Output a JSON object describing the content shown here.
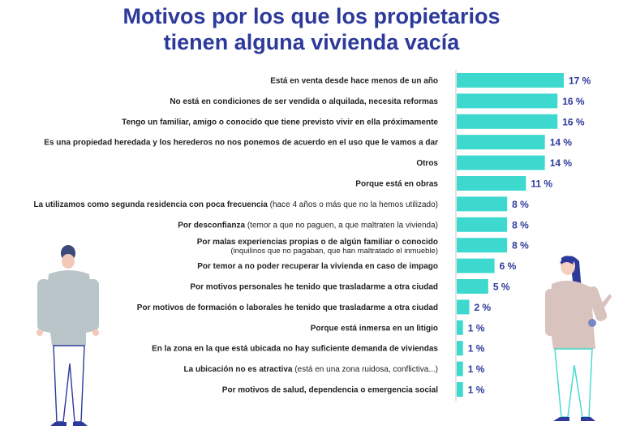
{
  "title_lines": [
    "Motivos por los que los propietarios",
    "tienen alguna vivienda vacía"
  ],
  "colors": {
    "bar": "#3dd9cf",
    "title": "#2d3a9b",
    "value": "#2d3a9b",
    "label": "#222222",
    "axis": "#c8c8c8"
  },
  "chart_data": {
    "type": "bar",
    "orientation": "horizontal",
    "title": "Motivos por los que los propietarios tienen alguna vivienda vacía",
    "unit": "%",
    "xlim": [
      0,
      17
    ],
    "categories": [
      {
        "bold": "Está en venta desde hace menos de un año",
        "light": "",
        "light2": ""
      },
      {
        "bold": "No está en condiciones de ser vendida o alquilada, necesita reformas",
        "light": "",
        "light2": ""
      },
      {
        "bold": "Tengo un familiar, amigo o conocido que tiene previsto vivir en ella próximamente",
        "light": "",
        "light2": ""
      },
      {
        "bold": "Es una propiedad heredada y los herederos no nos ponemos de acuerdo en el uso que le vamos a dar",
        "light": "",
        "light2": ""
      },
      {
        "bold": "Otros",
        "light": "",
        "light2": ""
      },
      {
        "bold": "Porque está en obras",
        "light": "",
        "light2": ""
      },
      {
        "bold": "La utilizamos como segunda residencia con poca frecuencia",
        "light": " (hace 4 años o más que no la hemos utilizado)",
        "light2": ""
      },
      {
        "bold": "Por desconfianza",
        "light": " (temor a que no paguen, a que maltraten la vivienda)",
        "light2": ""
      },
      {
        "bold": "Por malas experiencias propias o de algún familiar o conocido",
        "light": "",
        "light2": "(inquilinos que no pagaban, que han maltratado el inmueble)"
      },
      {
        "bold": "Por temor a no poder recuperar la vivienda en caso de impago",
        "light": "",
        "light2": ""
      },
      {
        "bold": "Por motivos personales he tenido que trasladarme a otra ciudad",
        "light": "",
        "light2": ""
      },
      {
        "bold": "Por motivos de formación o laborales he tenido que trasladarme a otra ciudad",
        "light": "",
        "light2": ""
      },
      {
        "bold": "Porque está inmersa en un litigio",
        "light": "",
        "light2": ""
      },
      {
        "bold": "En la zona en la que está ubicada no hay suficiente demanda de viviendas",
        "light": "",
        "light2": ""
      },
      {
        "bold": "La ubicación no es atractiva",
        "light": " (está en una zona ruidosa, conflictiva...)",
        "light2": ""
      },
      {
        "bold": "Por motivos de salud, dependencia o emergencia social",
        "light": "",
        "light2": ""
      }
    ],
    "values": [
      17,
      16,
      16,
      14,
      14,
      11,
      8,
      8,
      8,
      6,
      5,
      2,
      1,
      1,
      1,
      1
    ],
    "value_labels": [
      "17 %",
      "16 %",
      "16 %",
      "14 %",
      "14 %",
      "11 %",
      "8 %",
      "8 %",
      "8 %",
      "6 %",
      "5 %",
      "2 %",
      "1 %",
      "1 %",
      "1 %",
      "1 %"
    ]
  }
}
